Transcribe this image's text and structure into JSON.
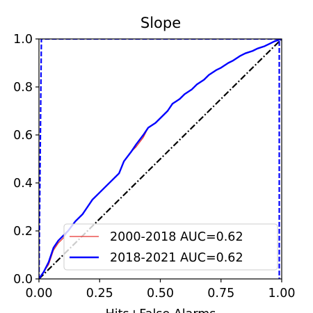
{
  "chart_data": {
    "type": "line",
    "title": "Slope",
    "xlabel": "Hits+False Alarms",
    "ylabel": "",
    "xlim": [
      0,
      1
    ],
    "ylim": [
      0,
      1
    ],
    "x_ticks": [
      "0.00",
      "0.25",
      "0.50",
      "0.75",
      "1.00"
    ],
    "y_ticks": [
      "0.0",
      "0.2",
      "0.4",
      "0.6",
      "0.8",
      "1.0"
    ],
    "grid": false,
    "legend_position": "lower-right",
    "series": [
      {
        "name": "2000-2018 AUC=0.62",
        "color": "#e8322f",
        "style": "solid-thin",
        "x": [
          0.0,
          0.02,
          0.04,
          0.06,
          0.08,
          0.1,
          0.12,
          0.15,
          0.18,
          0.2,
          0.22,
          0.25,
          0.28,
          0.3,
          0.33,
          0.35,
          0.38,
          0.4,
          0.43,
          0.45,
          0.48,
          0.5,
          0.53,
          0.55,
          0.58,
          0.6,
          0.63,
          0.65,
          0.68,
          0.7,
          0.73,
          0.75,
          0.78,
          0.8,
          0.83,
          0.85,
          0.88,
          0.9,
          0.93,
          0.95,
          0.97,
          1.0
        ],
        "y": [
          0.0,
          0.03,
          0.06,
          0.12,
          0.15,
          0.17,
          0.2,
          0.24,
          0.27,
          0.3,
          0.33,
          0.36,
          0.39,
          0.41,
          0.44,
          0.49,
          0.53,
          0.55,
          0.59,
          0.63,
          0.65,
          0.67,
          0.7,
          0.73,
          0.75,
          0.77,
          0.79,
          0.81,
          0.83,
          0.85,
          0.87,
          0.88,
          0.9,
          0.91,
          0.93,
          0.94,
          0.95,
          0.96,
          0.97,
          0.98,
          0.99,
          1.0
        ]
      },
      {
        "name": "2018-2021 AUC=0.62",
        "color": "#0000ff",
        "style": "solid-thick",
        "x": [
          0.0,
          0.02,
          0.04,
          0.06,
          0.08,
          0.1,
          0.12,
          0.15,
          0.18,
          0.2,
          0.22,
          0.25,
          0.28,
          0.3,
          0.33,
          0.35,
          0.38,
          0.4,
          0.43,
          0.45,
          0.48,
          0.5,
          0.53,
          0.55,
          0.58,
          0.6,
          0.63,
          0.65,
          0.68,
          0.7,
          0.73,
          0.75,
          0.78,
          0.8,
          0.83,
          0.85,
          0.88,
          0.9,
          0.93,
          0.95,
          0.97,
          1.0
        ],
        "y": [
          0.0,
          0.03,
          0.07,
          0.13,
          0.16,
          0.18,
          0.2,
          0.24,
          0.27,
          0.3,
          0.33,
          0.36,
          0.39,
          0.41,
          0.44,
          0.49,
          0.53,
          0.56,
          0.6,
          0.63,
          0.65,
          0.67,
          0.7,
          0.73,
          0.75,
          0.77,
          0.79,
          0.81,
          0.83,
          0.85,
          0.87,
          0.88,
          0.9,
          0.91,
          0.93,
          0.94,
          0.95,
          0.96,
          0.97,
          0.98,
          0.99,
          1.0
        ]
      }
    ],
    "reference_lines": [
      {
        "kind": "diagonal",
        "color": "#000000",
        "style": "dash-dot",
        "x": [
          0,
          1
        ],
        "y": [
          0,
          1
        ]
      },
      {
        "kind": "perfect-classifier-box",
        "color": "#0000ff",
        "style": "dashed",
        "x": [
          0.0,
          0.01,
          0.99,
          0.99
        ],
        "y": [
          0.0,
          1.0,
          1.0,
          0.0
        ]
      }
    ]
  }
}
